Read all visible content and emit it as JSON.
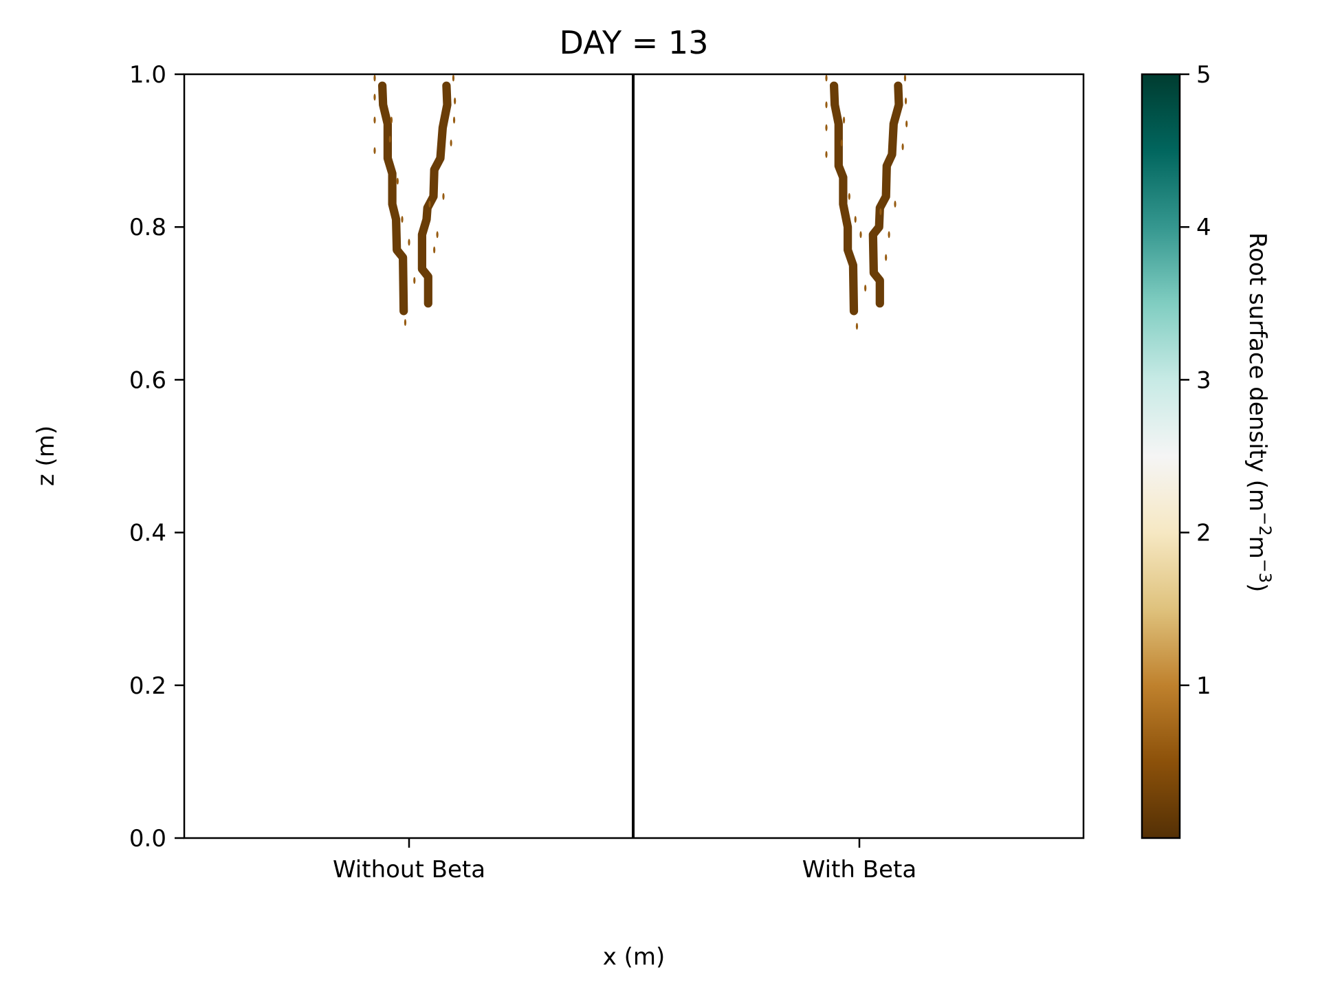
{
  "chart_data": {
    "type": "heatmap",
    "title": "DAY = 13",
    "xlabel": "x (m)",
    "ylabel": "z (m)",
    "ylim": [
      0.0,
      1.0
    ],
    "grid": false,
    "panels": [
      {
        "name": "Without Beta",
        "roots": [
          {
            "density": 0.2,
            "width": 0.011,
            "path": [
              [
                0.01,
                0.985
              ],
              [
                0.011,
                0.96
              ],
              [
                0.017,
                0.935
              ],
              [
                0.017,
                0.89
              ],
              [
                0.023,
                0.87
              ],
              [
                0.023,
                0.83
              ],
              [
                0.028,
                0.81
              ],
              [
                0.029,
                0.77
              ],
              [
                0.037,
                0.76
              ],
              [
                0.038,
                0.69
              ]
            ]
          },
          {
            "density": 0.2,
            "width": 0.011,
            "path": [
              [
                0.094,
                0.985
              ],
              [
                0.095,
                0.96
              ],
              [
                0.089,
                0.93
              ],
              [
                0.086,
                0.89
              ],
              [
                0.078,
                0.875
              ],
              [
                0.077,
                0.84
              ],
              [
                0.069,
                0.825
              ],
              [
                0.068,
                0.81
              ],
              [
                0.062,
                0.79
              ],
              [
                0.062,
                0.745
              ],
              [
                0.07,
                0.735
              ],
              [
                0.07,
                0.7
              ]
            ]
          }
        ],
        "speckles": [
          [
            0.0,
            0.995
          ],
          [
            0.0,
            0.97
          ],
          [
            0.0,
            0.94
          ],
          [
            0.0,
            0.9
          ],
          [
            0.02,
            0.915
          ],
          [
            0.022,
            0.94
          ],
          [
            0.03,
            0.86
          ],
          [
            0.036,
            0.81
          ],
          [
            0.04,
            0.675
          ],
          [
            0.045,
            0.78
          ],
          [
            0.103,
            0.995
          ],
          [
            0.105,
            0.965
          ],
          [
            0.104,
            0.94
          ],
          [
            0.1,
            0.91
          ],
          [
            0.09,
            0.84
          ],
          [
            0.082,
            0.79
          ],
          [
            0.078,
            0.77
          ],
          [
            0.072,
            0.83
          ],
          [
            0.052,
            0.73
          ]
        ]
      },
      {
        "name": "With Beta",
        "roots": [
          {
            "density": 0.2,
            "width": 0.011,
            "path": [
              [
                0.01,
                0.985
              ],
              [
                0.011,
                0.96
              ],
              [
                0.016,
                0.935
              ],
              [
                0.016,
                0.88
              ],
              [
                0.022,
                0.865
              ],
              [
                0.022,
                0.83
              ],
              [
                0.028,
                0.8
              ],
              [
                0.028,
                0.77
              ],
              [
                0.035,
                0.75
              ],
              [
                0.036,
                0.69
              ]
            ]
          },
          {
            "density": 0.2,
            "width": 0.011,
            "path": [
              [
                0.094,
                0.985
              ],
              [
                0.095,
                0.96
              ],
              [
                0.088,
                0.935
              ],
              [
                0.086,
                0.895
              ],
              [
                0.079,
                0.88
              ],
              [
                0.078,
                0.84
              ],
              [
                0.07,
                0.825
              ],
              [
                0.069,
                0.8
              ],
              [
                0.061,
                0.79
              ],
              [
                0.062,
                0.74
              ],
              [
                0.07,
                0.73
              ],
              [
                0.07,
                0.7
              ]
            ]
          }
        ],
        "speckles": [
          [
            0.0,
            0.995
          ],
          [
            0.0,
            0.96
          ],
          [
            0.0,
            0.93
          ],
          [
            0.0,
            0.895
          ],
          [
            0.02,
            0.91
          ],
          [
            0.023,
            0.94
          ],
          [
            0.03,
            0.84
          ],
          [
            0.038,
            0.81
          ],
          [
            0.04,
            0.67
          ],
          [
            0.045,
            0.79
          ],
          [
            0.103,
            0.995
          ],
          [
            0.104,
            0.965
          ],
          [
            0.105,
            0.935
          ],
          [
            0.1,
            0.905
          ],
          [
            0.09,
            0.83
          ],
          [
            0.082,
            0.79
          ],
          [
            0.078,
            0.76
          ],
          [
            0.071,
            0.82
          ],
          [
            0.051,
            0.72
          ]
        ]
      }
    ],
    "colorbar": {
      "label_main": "Root surface density (m",
      "label_sup1": "−2",
      "label_mid": "m",
      "label_sup2": "−3",
      "label_end": ")",
      "min": 0,
      "max": 5,
      "ticks": [
        1,
        2,
        3,
        4,
        5
      ],
      "colormap": "BrBG",
      "stops": [
        "#543005",
        "#8c510a",
        "#bf812d",
        "#dfc27d",
        "#f6e8c3",
        "#f5f5f5",
        "#c7eae5",
        "#80cdc1",
        "#35978f",
        "#01665e",
        "#003c30"
      ]
    },
    "yticks": [
      0.0,
      0.2,
      0.4,
      0.6,
      0.8,
      1.0
    ]
  }
}
